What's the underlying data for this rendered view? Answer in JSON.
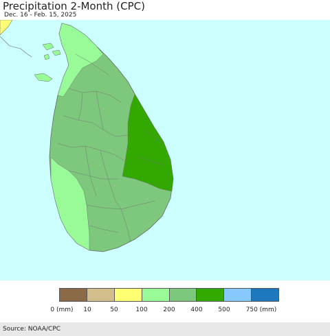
{
  "header": {
    "title": "Precipitation 2-Month (CPC)",
    "subtitle": "Dec. 16 - Feb. 15, 2025"
  },
  "map": {
    "ocean_color": "#ccffff",
    "border_color": "#777777"
  },
  "legend": {
    "colors": [
      "#8b6b47",
      "#d2be8a",
      "#ffff73",
      "#98fb98",
      "#7dc87d",
      "#33a800",
      "#87c8ff",
      "#1e78be"
    ],
    "ticks": [
      "0 (mm)",
      "10",
      "50",
      "100",
      "200",
      "400",
      "500",
      "750 (mm)"
    ]
  },
  "footer": {
    "source": "Source: NOAA/CPC"
  }
}
